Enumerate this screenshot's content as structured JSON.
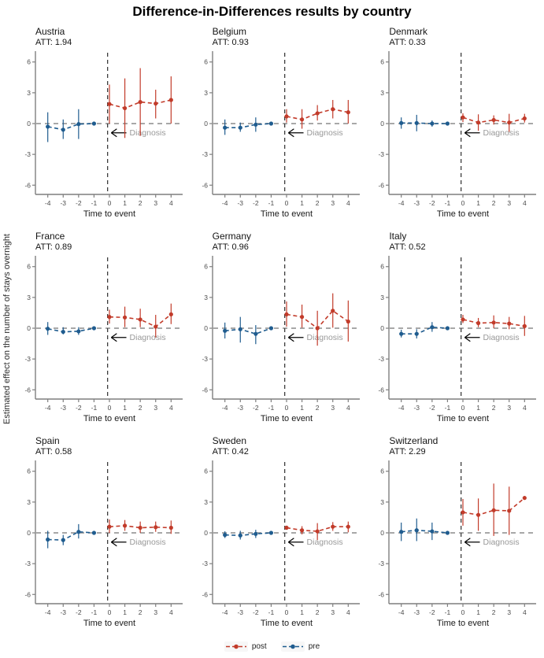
{
  "title": "Difference-in-Differences results by country",
  "ylabel": "Estimated effect on the number of stays overnight",
  "xlabel": "Time to event",
  "annotation": "Diagnosis",
  "colors": {
    "post": "#c23b2a",
    "pre": "#1f5c8f",
    "hline": "#9c9c9c",
    "vline": "#3d3d3d",
    "axis": "#7f7f7f",
    "ticktext": "#4d4d4d",
    "annotation_text": "#999999",
    "arrow": "#000000"
  },
  "legend": {
    "items": [
      {
        "name": "post",
        "label": "post",
        "color": "#c23b2a"
      },
      {
        "name": "pre",
        "label": "pre",
        "color": "#1f5c8f"
      }
    ]
  },
  "axes": {
    "xlim": [
      -4.75,
      4.75
    ],
    "ylim": [
      -6.9,
      6.9
    ],
    "xticks": [
      -4,
      -3,
      -2,
      -1,
      0,
      1,
      2,
      3,
      4
    ],
    "yticks": [
      -6,
      -3,
      0,
      3,
      6
    ],
    "vline_x": -0.12,
    "hline_y": 0,
    "grid": false,
    "legend_position": "bottom"
  },
  "chart_data": [
    {
      "type": "scatter",
      "title": "Austria",
      "att": "ATT: 1.94",
      "series": [
        {
          "name": "pre",
          "x": [
            -4,
            -3,
            -2,
            -1
          ],
          "y": [
            -0.3,
            -0.6,
            -0.05,
            0
          ],
          "lo": [
            -1.8,
            -1.5,
            -1.5,
            -0.05
          ],
          "hi": [
            1.1,
            0.4,
            1.4,
            0.05
          ]
        },
        {
          "name": "post",
          "x": [
            0,
            1,
            2,
            3,
            4
          ],
          "y": [
            1.9,
            1.5,
            2.1,
            1.95,
            2.3
          ],
          "lo": [
            0.0,
            -1.4,
            -1.2,
            0.5,
            0.0
          ],
          "hi": [
            3.8,
            4.4,
            5.4,
            3.3,
            4.6
          ]
        }
      ]
    },
    {
      "type": "scatter",
      "title": "Belgium",
      "att": "ATT: 0.93",
      "series": [
        {
          "name": "pre",
          "x": [
            -4,
            -3,
            -2,
            -1
          ],
          "y": [
            -0.4,
            -0.4,
            -0.1,
            0
          ],
          "lo": [
            -1.1,
            -0.8,
            -0.8,
            -0.05
          ],
          "hi": [
            0.4,
            0.1,
            0.6,
            0.05
          ]
        },
        {
          "name": "post",
          "x": [
            0,
            1,
            2,
            3,
            4
          ],
          "y": [
            0.7,
            0.4,
            1.0,
            1.4,
            1.1
          ],
          "lo": [
            0.1,
            -0.5,
            0.3,
            0.5,
            0.0
          ],
          "hi": [
            1.4,
            1.4,
            1.8,
            2.3,
            2.3
          ]
        }
      ]
    },
    {
      "type": "scatter",
      "title": "Denmark",
      "att": "ATT: 0.33",
      "series": [
        {
          "name": "pre",
          "x": [
            -4,
            -3,
            -2,
            -1
          ],
          "y": [
            0.05,
            0.05,
            0.0,
            0
          ],
          "lo": [
            -0.5,
            -0.75,
            -0.3,
            -0.05
          ],
          "hi": [
            0.6,
            0.85,
            0.3,
            0.05
          ]
        },
        {
          "name": "post",
          "x": [
            0,
            1,
            2,
            3,
            4
          ],
          "y": [
            0.6,
            0.1,
            0.35,
            0.1,
            0.5
          ],
          "lo": [
            0.15,
            -0.7,
            -0.1,
            -0.8,
            0.1
          ],
          "hi": [
            1.0,
            0.9,
            0.8,
            0.95,
            0.95
          ]
        }
      ]
    },
    {
      "type": "scatter",
      "title": "France",
      "att": "ATT: 0.89",
      "series": [
        {
          "name": "pre",
          "x": [
            -4,
            -3,
            -2,
            -1
          ],
          "y": [
            -0.05,
            -0.35,
            -0.3,
            0
          ],
          "lo": [
            -0.65,
            -0.6,
            -0.65,
            -0.05
          ],
          "hi": [
            0.6,
            0.1,
            0.1,
            0.05
          ]
        },
        {
          "name": "post",
          "x": [
            0,
            1,
            2,
            3,
            4
          ],
          "y": [
            1.1,
            1.05,
            0.85,
            0.15,
            1.35
          ],
          "lo": [
            0.45,
            0.1,
            0.1,
            -0.9,
            0.4
          ],
          "hi": [
            1.8,
            2.1,
            1.9,
            1.3,
            2.4
          ]
        }
      ]
    },
    {
      "type": "scatter",
      "title": "Germany",
      "att": "ATT: 0.96",
      "series": [
        {
          "name": "pre",
          "x": [
            -4,
            -3,
            -2,
            -1
          ],
          "y": [
            -0.25,
            -0.1,
            -0.55,
            0
          ],
          "lo": [
            -1.0,
            -1.4,
            -1.55,
            -0.05
          ],
          "hi": [
            0.55,
            1.1,
            0.3,
            0.05
          ]
        },
        {
          "name": "post",
          "x": [
            0,
            1,
            2,
            3,
            4
          ],
          "y": [
            1.35,
            1.1,
            0.0,
            1.7,
            0.65
          ],
          "lo": [
            0.15,
            0.05,
            -1.7,
            0.05,
            -1.3
          ],
          "hi": [
            2.6,
            2.3,
            1.7,
            3.4,
            2.7
          ]
        }
      ]
    },
    {
      "type": "scatter",
      "title": "Italy",
      "att": "ATT: 0.52",
      "series": [
        {
          "name": "pre",
          "x": [
            -4,
            -3,
            -2,
            -1
          ],
          "y": [
            -0.55,
            -0.55,
            0.1,
            0
          ],
          "lo": [
            -0.9,
            -1.0,
            -0.35,
            -0.05
          ],
          "hi": [
            -0.15,
            -0.1,
            0.6,
            0.05
          ]
        },
        {
          "name": "post",
          "x": [
            0,
            1,
            2,
            3,
            4
          ],
          "y": [
            0.85,
            0.5,
            0.55,
            0.45,
            0.2
          ],
          "lo": [
            0.5,
            0.1,
            0.0,
            -0.1,
            -0.75
          ],
          "hi": [
            1.3,
            1.0,
            1.25,
            1.1,
            1.2
          ]
        }
      ]
    },
    {
      "type": "scatter",
      "title": "Spain",
      "att": "ATT: 0.58",
      "series": [
        {
          "name": "pre",
          "x": [
            -4,
            -3,
            -2,
            -1
          ],
          "y": [
            -0.65,
            -0.7,
            0.1,
            0
          ],
          "lo": [
            -1.5,
            -1.2,
            -0.55,
            -0.05
          ],
          "hi": [
            0.2,
            -0.2,
            0.85,
            0.05
          ]
        },
        {
          "name": "post",
          "x": [
            0,
            1,
            2,
            3,
            4
          ],
          "y": [
            0.6,
            0.7,
            0.5,
            0.55,
            0.5
          ],
          "lo": [
            0.0,
            0.2,
            0.0,
            0.1,
            -0.1
          ],
          "hi": [
            1.3,
            1.25,
            1.1,
            1.1,
            1.2
          ]
        }
      ]
    },
    {
      "type": "scatter",
      "title": "Sweden",
      "att": "ATT: 0.42",
      "series": [
        {
          "name": "pre",
          "x": [
            -4,
            -3,
            -2,
            -1
          ],
          "y": [
            -0.2,
            -0.25,
            -0.1,
            0
          ],
          "lo": [
            -0.5,
            -0.65,
            -0.5,
            -0.05
          ],
          "hi": [
            0.15,
            0.2,
            0.3,
            0.05
          ]
        },
        {
          "name": "post",
          "x": [
            0,
            1,
            2,
            3,
            4
          ],
          "y": [
            0.5,
            0.25,
            0.15,
            0.6,
            0.6
          ],
          "lo": [
            0.3,
            -0.15,
            -0.7,
            0.2,
            0.05
          ],
          "hi": [
            0.7,
            0.65,
            0.95,
            1.05,
            1.1
          ]
        }
      ]
    },
    {
      "type": "scatter",
      "title": "Switzerland",
      "att": "ATT: 2.29",
      "series": [
        {
          "name": "pre",
          "x": [
            -4,
            -3,
            -2,
            -1
          ],
          "y": [
            0.1,
            0.25,
            0.15,
            0
          ],
          "lo": [
            -0.8,
            -0.8,
            -0.7,
            -0.05
          ],
          "hi": [
            1.0,
            1.4,
            1.0,
            0.05
          ]
        },
        {
          "name": "post",
          "x": [
            0,
            1,
            2,
            3,
            4
          ],
          "y": [
            2.0,
            1.75,
            2.2,
            2.15,
            3.4
          ],
          "lo": [
            0.7,
            0.2,
            -0.3,
            -0.2,
            3.3
          ],
          "hi": [
            3.3,
            3.35,
            4.8,
            4.5,
            3.5
          ]
        }
      ]
    }
  ]
}
